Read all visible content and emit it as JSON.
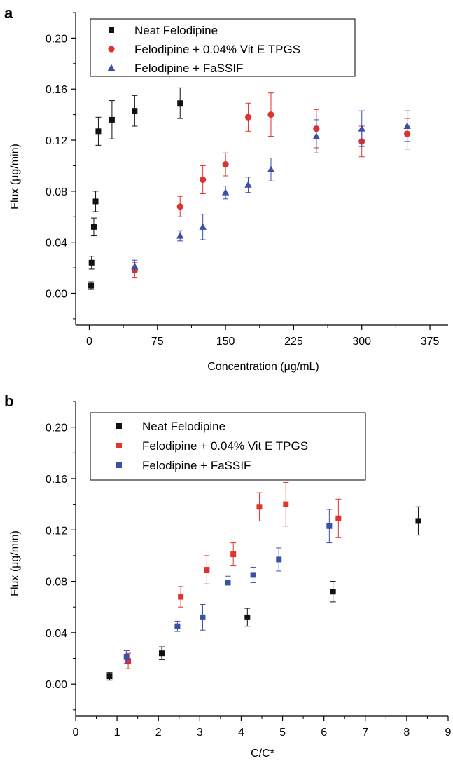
{
  "chart_data": [
    {
      "type": "scatter",
      "panel": "a",
      "xlabel": "Concentration (μg/mL)",
      "ylabel": "Flux (μg/min)",
      "xlim": [
        -15,
        395
      ],
      "ylim": [
        -0.025,
        0.22
      ],
      "xticks": [
        0,
        75,
        150,
        225,
        300,
        375
      ],
      "xtick_labels": [
        "0",
        "75",
        "150",
        "225",
        "300",
        "375"
      ],
      "yticks": [
        0.0,
        0.04,
        0.08,
        0.12,
        0.16,
        0.2
      ],
      "ytick_labels": [
        "0.00",
        "0.04",
        "0.08",
        "0.12",
        "0.16",
        "0.20"
      ],
      "legend_position": "top",
      "grid": false,
      "series": [
        {
          "name": "Neat Felodipine",
          "marker": "square",
          "color": "#111111",
          "x": [
            2,
            2.5,
            5,
            7,
            10,
            25,
            50,
            100
          ],
          "y": [
            0.006,
            0.024,
            0.052,
            0.072,
            0.127,
            0.136,
            0.143,
            0.149
          ],
          "err": [
            0.003,
            0.005,
            0.007,
            0.008,
            0.011,
            0.015,
            0.012,
            0.012
          ]
        },
        {
          "name": "Felodipine + 0.04% Vit E TPGS",
          "marker": "circle",
          "color": "#e0332e",
          "x": [
            50,
            100,
            125,
            150,
            175,
            200,
            250,
            300,
            350
          ],
          "y": [
            0.018,
            0.068,
            0.089,
            0.101,
            0.138,
            0.14,
            0.129,
            0.119,
            0.125
          ],
          "err": [
            0.006,
            0.008,
            0.011,
            0.009,
            0.011,
            0.017,
            0.015,
            0.012,
            0.012
          ]
        },
        {
          "name": "Felodipine + FaSSIF",
          "marker": "triangle",
          "color": "#3a4fa8",
          "x": [
            50,
            100,
            125,
            150,
            175,
            200,
            250,
            300,
            350
          ],
          "y": [
            0.021,
            0.045,
            0.052,
            0.079,
            0.085,
            0.097,
            0.123,
            0.129,
            0.131
          ],
          "err": [
            0.005,
            0.004,
            0.01,
            0.005,
            0.006,
            0.009,
            0.013,
            0.014,
            0.012
          ]
        }
      ]
    },
    {
      "type": "scatter",
      "panel": "b",
      "xlabel": "C/C*",
      "ylabel": "Flux (μg/min)",
      "xlim": [
        0,
        9
      ],
      "ylim": [
        -0.025,
        0.22
      ],
      "xticks": [
        0,
        1,
        2,
        3,
        4,
        5,
        6,
        7,
        8,
        9
      ],
      "xtick_labels": [
        "0",
        "1",
        "2",
        "3",
        "4",
        "5",
        "6",
        "7",
        "8",
        "9"
      ],
      "yticks": [
        0.0,
        0.04,
        0.08,
        0.12,
        0.16,
        0.2
      ],
      "ytick_labels": [
        "0.00",
        "0.04",
        "0.08",
        "0.12",
        "0.16",
        "0.20"
      ],
      "legend_position": "top",
      "grid": false,
      "series": [
        {
          "name": "Neat Felodipine",
          "marker": "square",
          "color": "#111111",
          "x": [
            0.82,
            2.08,
            4.15,
            6.22,
            8.28
          ],
          "y": [
            0.006,
            0.024,
            0.052,
            0.072,
            0.127
          ],
          "err": [
            0.003,
            0.005,
            0.007,
            0.008,
            0.011
          ]
        },
        {
          "name": "Felodipine + 0.04% Vit E TPGS",
          "marker": "square",
          "color": "#e0332e",
          "x": [
            1.27,
            2.54,
            3.17,
            3.81,
            4.44,
            5.08,
            6.35
          ],
          "y": [
            0.018,
            0.068,
            0.089,
            0.101,
            0.138,
            0.14,
            0.129
          ],
          "err": [
            0.006,
            0.008,
            0.011,
            0.009,
            0.011,
            0.017,
            0.015
          ]
        },
        {
          "name": "Felodipine + FaSSIF",
          "marker": "square",
          "color": "#3a4fa8",
          "x": [
            1.23,
            2.46,
            3.07,
            3.68,
            4.29,
            4.91,
            6.13
          ],
          "y": [
            0.021,
            0.045,
            0.052,
            0.079,
            0.085,
            0.097,
            0.123
          ],
          "err": [
            0.005,
            0.004,
            0.01,
            0.005,
            0.006,
            0.009,
            0.013
          ]
        }
      ]
    }
  ]
}
